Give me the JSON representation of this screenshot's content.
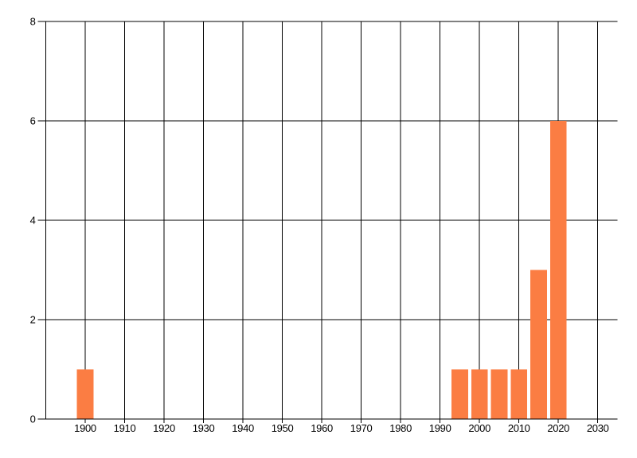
{
  "page": {
    "background": "#ffffff"
  },
  "colors": {
    "bar": "#fb7d43",
    "grid": "#000000",
    "axis": "#000000",
    "text": "#000000"
  },
  "chart_data": {
    "type": "bar",
    "title": "",
    "xlabel": "",
    "ylabel": "",
    "x": [
      1900,
      1995,
      2000,
      2005,
      2010,
      2015,
      2020
    ],
    "values": [
      1,
      1,
      1,
      1,
      1,
      3,
      6
    ],
    "bar_width_years": 4.2,
    "xlim": [
      1890,
      2035
    ],
    "ylim": [
      0,
      8
    ],
    "x_ticks": [
      1900,
      1910,
      1920,
      1930,
      1940,
      1950,
      1960,
      1970,
      1980,
      1990,
      2000,
      2010,
      2020,
      2030
    ],
    "y_ticks": [
      0,
      2,
      4,
      6,
      8
    ],
    "grid": "both",
    "legend": "none",
    "bars_drawn_above_gridlines": true
  }
}
